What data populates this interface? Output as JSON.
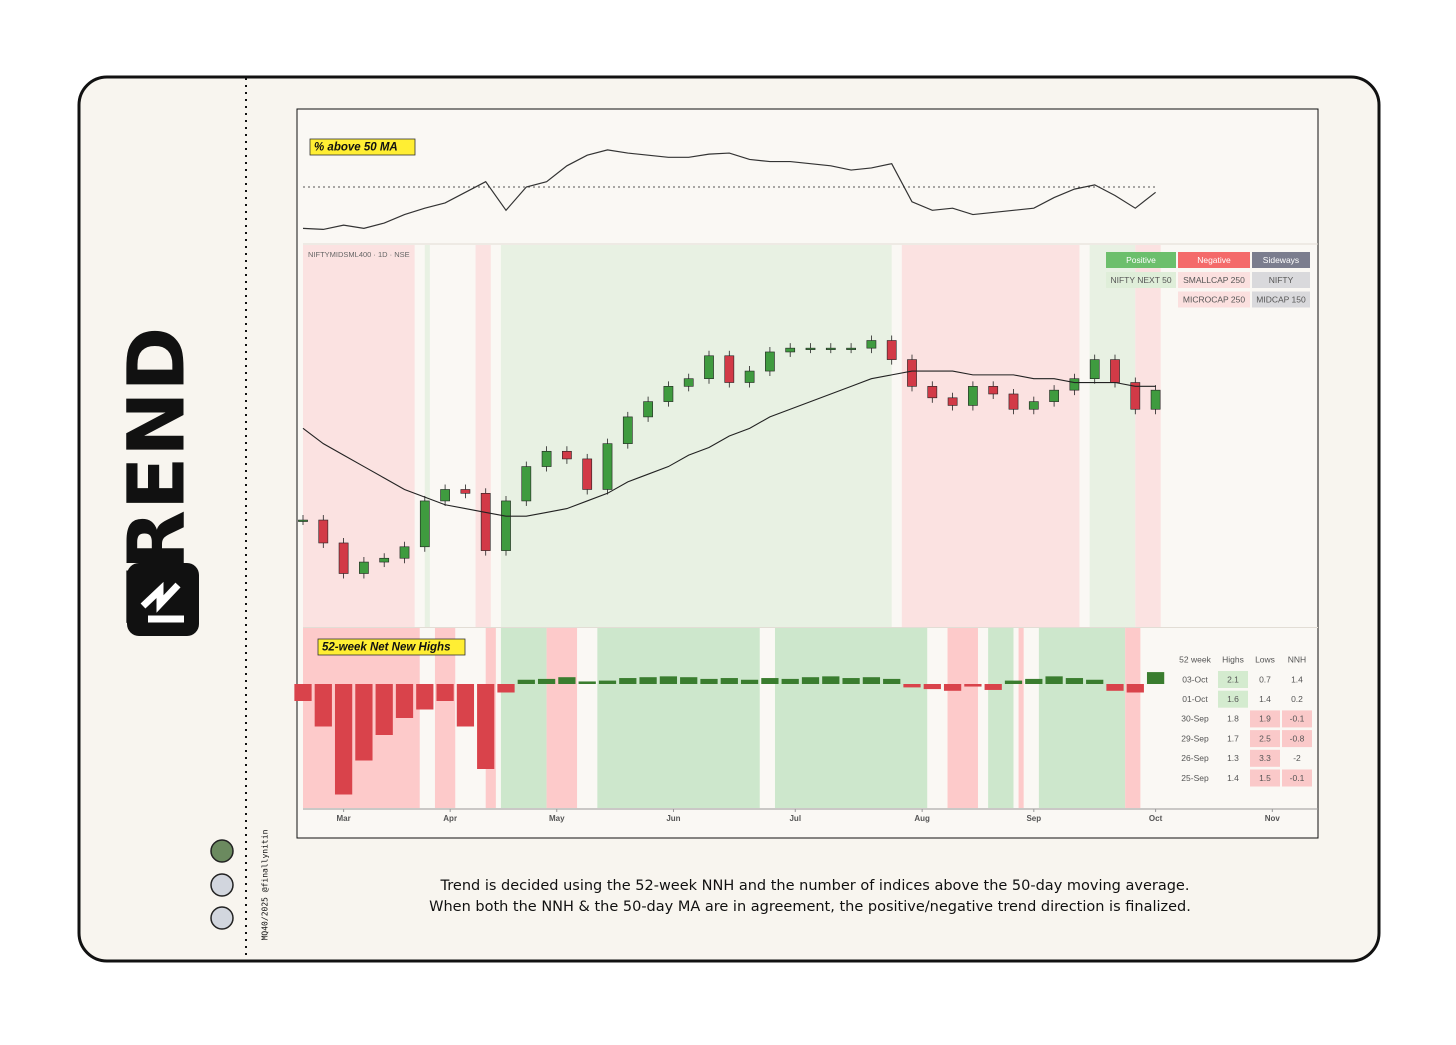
{
  "sidebar": {
    "title": "TREND",
    "credit": "MQ40/2025 @finallynitin"
  },
  "caption": [
    "Trend is decided using the 52-week NNH and the number of indices above the 50-day moving average.",
    "When both the NNH & the 50-day MA are in agreement, the positive/negative trend direction is finalized."
  ],
  "x": [
    0,
    4,
    8,
    12,
    16,
    20,
    24,
    28,
    32,
    36,
    40,
    44,
    48,
    52,
    56,
    60,
    64,
    68,
    72,
    76,
    80,
    84,
    88,
    92,
    96,
    100,
    104,
    108,
    112,
    116,
    120,
    124,
    128,
    132,
    136,
    140,
    144,
    148,
    152,
    156,
    160,
    164,
    168
  ],
  "xlim": [
    0,
    200
  ],
  "xticks": [
    {
      "value": 8,
      "label": "Mar"
    },
    {
      "value": 29,
      "label": "Apr"
    },
    {
      "value": 50,
      "label": "May"
    },
    {
      "value": 73,
      "label": "Jun"
    },
    {
      "value": 97,
      "label": "Jul"
    },
    {
      "value": 122,
      "label": "Aug"
    },
    {
      "value": 144,
      "label": "Sep"
    },
    {
      "value": 168,
      "label": "Oct"
    },
    {
      "value": 191,
      "label": "Nov"
    }
  ],
  "chart_data": [
    {
      "type": "line",
      "title": "% above 50 MA",
      "color": "#333333",
      "reference": 50,
      "ylim": [
        0,
        100
      ],
      "values": [
        11,
        10,
        14,
        11,
        16,
        24,
        30,
        35,
        45,
        55,
        28,
        50,
        55,
        70,
        80,
        85,
        82,
        80,
        78,
        78,
        81,
        82,
        76,
        74,
        74,
        72,
        70,
        66,
        68,
        72,
        36,
        28,
        30,
        24,
        26,
        28,
        30,
        40,
        48,
        52,
        42,
        30,
        45
      ]
    },
    {
      "type": "candlestick",
      "title": "NIFTYMIDSML400 · 1D · NSE",
      "up_color": "#3f9b3f",
      "down_color": "#d23a47",
      "ylim": [
        0,
        100
      ],
      "values": [
        28,
        22,
        14,
        17,
        18,
        21,
        33,
        36,
        35,
        20,
        33,
        42,
        46,
        44,
        36,
        48,
        55,
        59,
        63,
        65,
        71,
        64,
        67,
        72,
        73,
        73,
        73,
        73,
        75,
        70,
        63,
        60,
        58,
        63,
        61,
        57,
        59,
        62,
        65,
        70,
        64,
        57,
        62
      ],
      "ma": [
        52,
        48,
        45,
        42,
        39,
        36,
        34,
        32,
        31,
        30,
        29,
        29,
        30,
        31,
        33,
        35,
        38,
        40,
        42,
        45,
        47,
        50,
        52,
        55,
        57,
        59,
        61,
        63,
        65,
        66,
        67,
        67,
        67,
        66,
        66,
        66,
        65,
        65,
        64,
        64,
        64,
        63,
        63
      ],
      "regimes": [
        {
          "start": 0,
          "end": 22,
          "color": "#fbe2e1"
        },
        {
          "start": 24,
          "end": 25,
          "color": "#e8f1e3"
        },
        {
          "start": 34,
          "end": 37,
          "color": "#fbe2e1"
        },
        {
          "start": 39,
          "end": 116,
          "color": "#e8f1e3"
        },
        {
          "start": 118,
          "end": 153,
          "color": "#fbe2e1"
        },
        {
          "start": 155,
          "end": 164,
          "color": "#e8f1e3"
        },
        {
          "start": 164,
          "end": 169,
          "color": "#fbe2e1"
        }
      ],
      "legend": {
        "header": [
          {
            "label": "Positive",
            "color": "#6cbf6c"
          },
          {
            "label": "Negative",
            "color": "#f46a6a"
          },
          {
            "label": "Sideways",
            "color": "#7b7d8e"
          }
        ],
        "rows": [
          [
            "NIFTY NEXT 50",
            "SMALLCAP 250",
            "NIFTY"
          ],
          [
            null,
            "MICROCAP 250",
            "MIDCAP 150"
          ]
        ]
      }
    },
    {
      "type": "bar",
      "title": "52-week Net New Highs",
      "up_color": "#3a7d2f",
      "down_color": "#d9434b",
      "ylim": [
        -14,
        4
      ],
      "values": [
        -2,
        -5,
        -13,
        -9,
        -6,
        -4,
        -3,
        -2,
        -5,
        -10,
        -1,
        0.5,
        0.6,
        0.8,
        0.3,
        0.4,
        0.7,
        0.8,
        0.9,
        0.8,
        0.6,
        0.7,
        0.5,
        0.7,
        0.6,
        0.8,
        0.9,
        0.7,
        0.8,
        0.6,
        -0.4,
        -0.6,
        -0.8,
        -0.3,
        -0.7,
        0.4,
        0.6,
        0.9,
        0.7,
        0.5,
        -0.8,
        -1,
        1.4
      ],
      "regimes": [
        {
          "start": 0,
          "end": 23,
          "color": "#fdcaca"
        },
        {
          "start": 26,
          "end": 30,
          "color": "#fdcaca"
        },
        {
          "start": 36,
          "end": 38,
          "color": "#fdcaca"
        },
        {
          "start": 39,
          "end": 48,
          "color": "#cde7cc"
        },
        {
          "start": 48,
          "end": 54,
          "color": "#fdcaca"
        },
        {
          "start": 58,
          "end": 90,
          "color": "#cde7cc"
        },
        {
          "start": 93,
          "end": 123,
          "color": "#cde7cc"
        },
        {
          "start": 127,
          "end": 133,
          "color": "#fdcaca"
        },
        {
          "start": 135,
          "end": 140,
          "color": "#cde7cc"
        },
        {
          "start": 141,
          "end": 142,
          "color": "#fdcaca"
        },
        {
          "start": 145,
          "end": 162,
          "color": "#cde7cc"
        },
        {
          "start": 162,
          "end": 165,
          "color": "#fdcaca"
        }
      ],
      "table": {
        "header": [
          "52 week",
          "Highs",
          "Lows",
          "NNH"
        ],
        "rows": [
          [
            "03-Oct",
            2.1,
            0.7,
            1.4
          ],
          [
            "01-Oct",
            1.6,
            1.4,
            0.2
          ],
          [
            "30-Sep",
            1.8,
            1.9,
            -0.1
          ],
          [
            "29-Sep",
            1.7,
            2.5,
            -0.8
          ],
          [
            "26-Sep",
            1.3,
            3.3,
            -2
          ],
          [
            "25-Sep",
            1.4,
            1.5,
            -0.1
          ]
        ]
      }
    }
  ]
}
